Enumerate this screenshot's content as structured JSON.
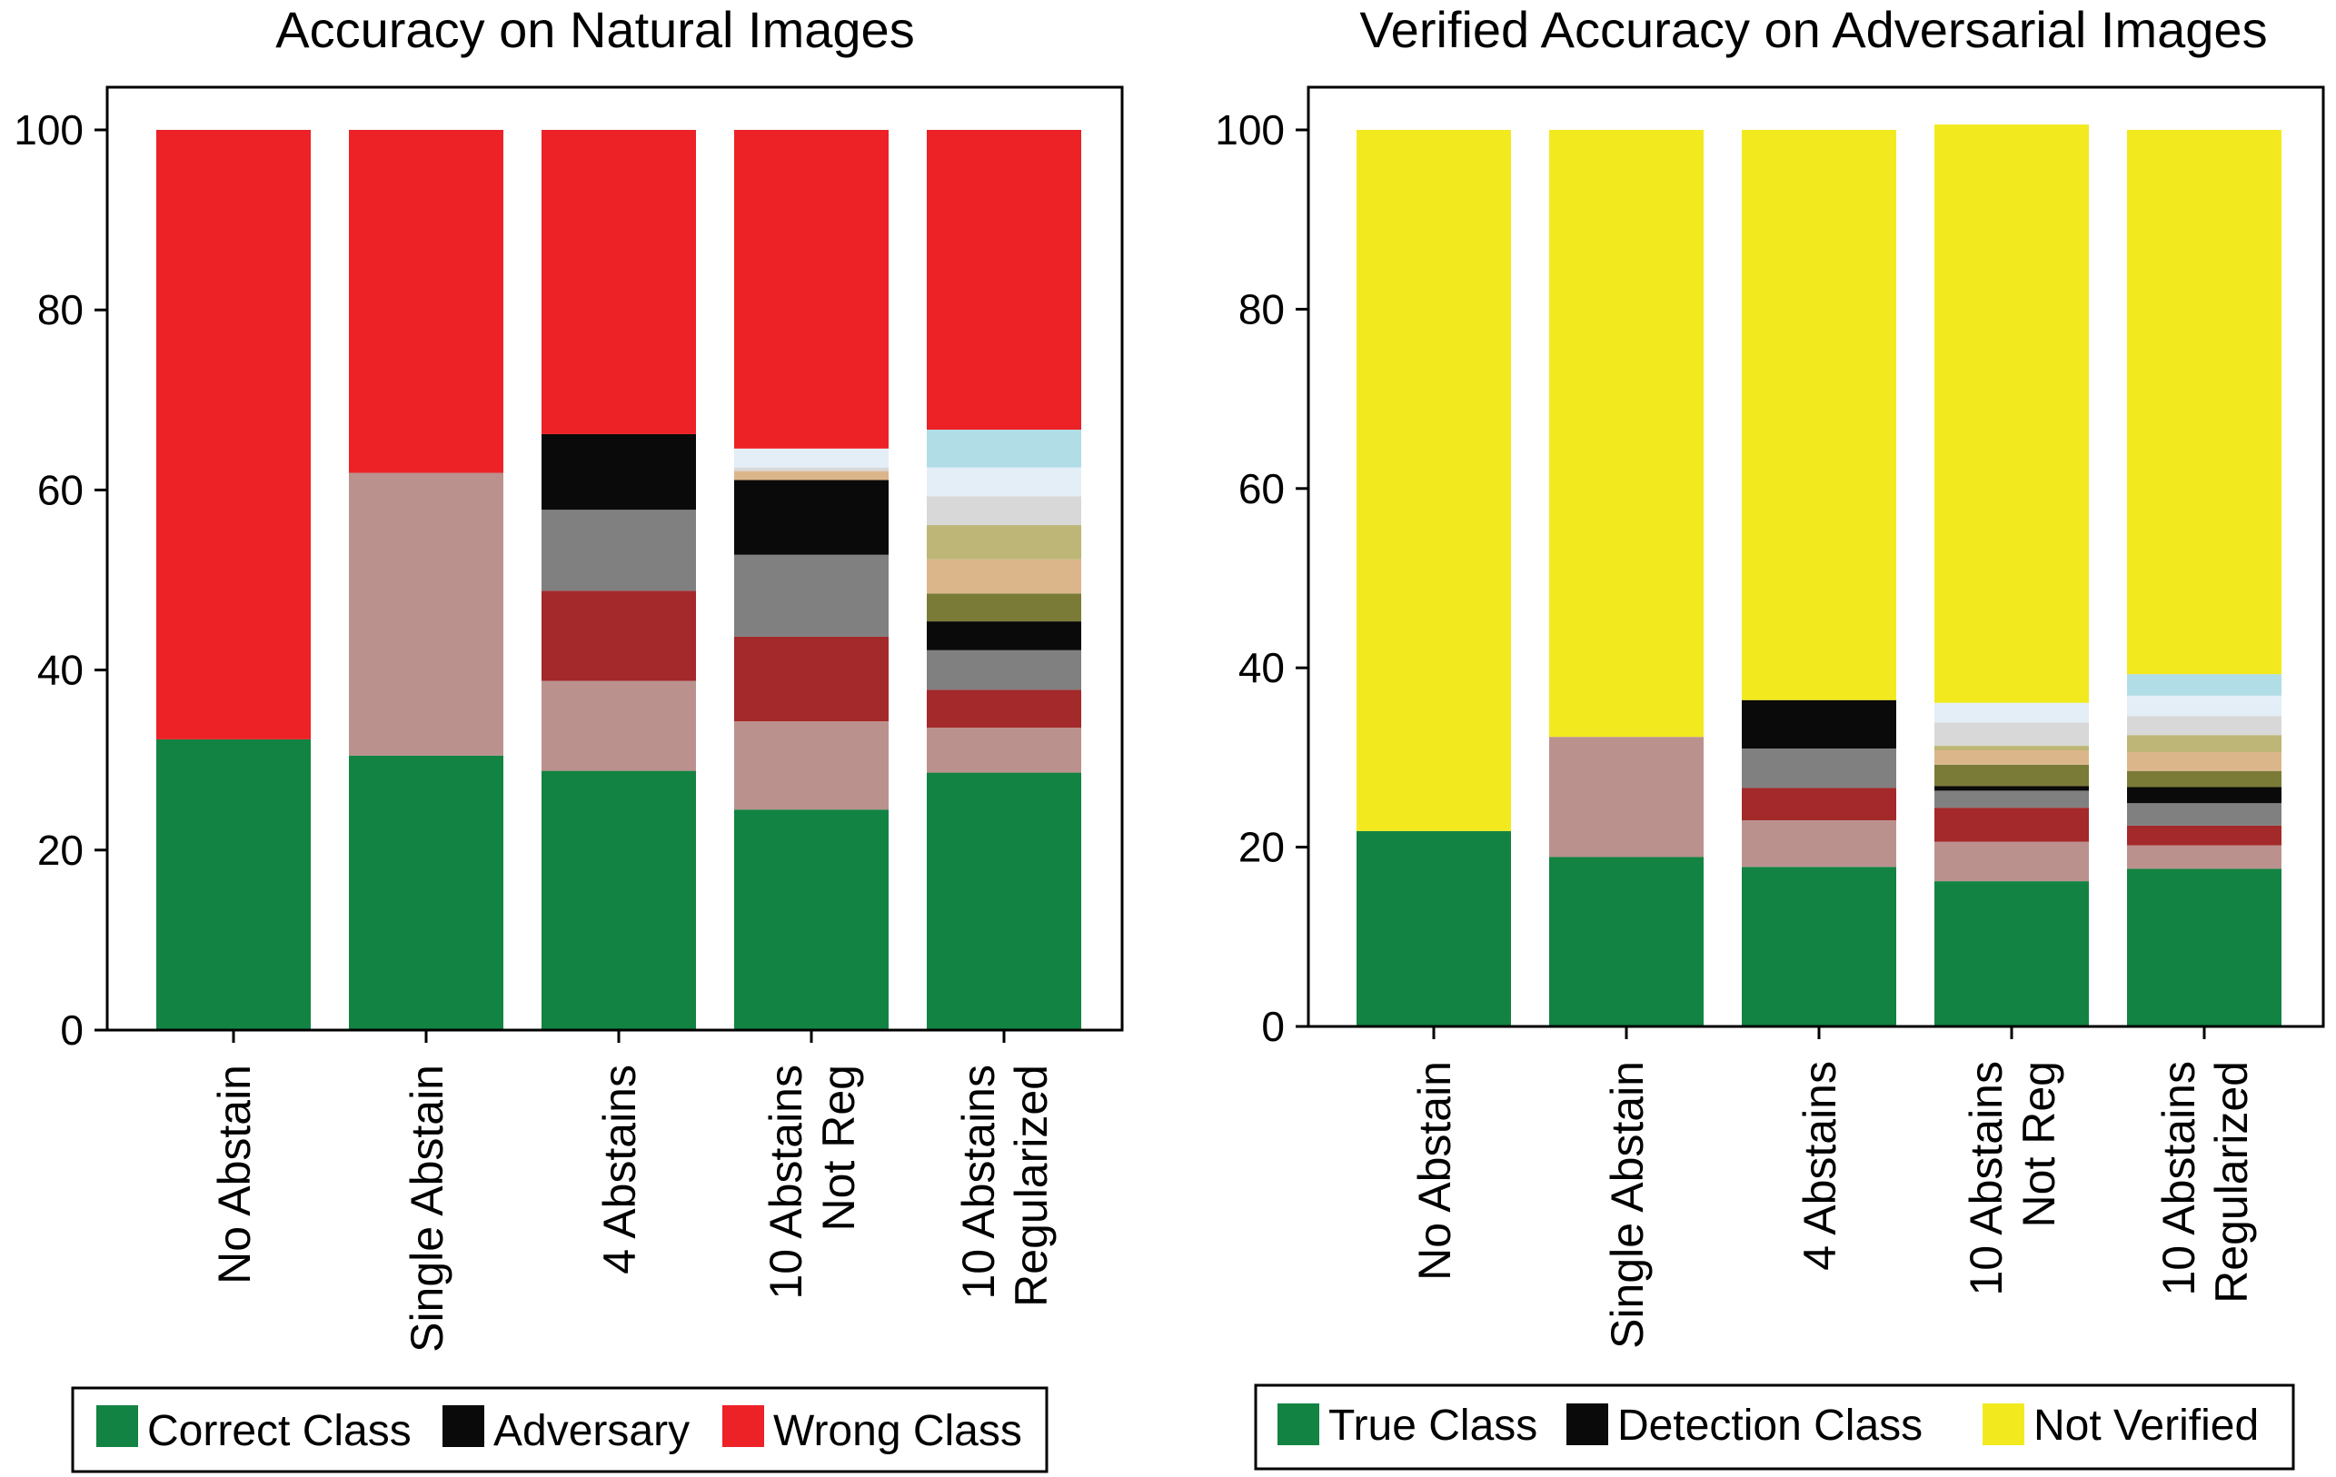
{
  "chart_data": [
    {
      "type": "bar",
      "stacked": true,
      "title": "Accuracy on Natural Images",
      "xlabel": "",
      "ylabel": "",
      "ylim": [
        0,
        105
      ],
      "yticks": [
        0,
        20,
        40,
        60,
        80,
        100
      ],
      "categories": [
        [
          "No Abstain"
        ],
        [
          "Single Abstain"
        ],
        [
          "4 Abstains"
        ],
        [
          "10 Abstains",
          "Not Reg"
        ],
        [
          "10 Abstains",
          "Regularized"
        ]
      ],
      "colors": {
        "correct": "#128342",
        "wrong": "#ec2227",
        "adversary": "#0a0a0a",
        "abstain": [
          "#bb918e",
          "#a4292a",
          "#808080",
          "#0a0a0a",
          "#7b7b38",
          "#dcb68b",
          "#bdb676",
          "#d8d8d8",
          "#e4eef6",
          "#b1dde6"
        ]
      },
      "bars": [
        {
          "correct": 32.3,
          "abstains": [],
          "wrong": 67.7
        },
        {
          "correct": 30.5,
          "abstains": [
            31.4
          ],
          "wrong": 38.1
        },
        {
          "correct": 28.8,
          "abstains": [
            10.0,
            10.0,
            9.0
          ],
          "adversary": 8.4,
          "wrong": 33.8
        },
        {
          "correct": 24.5,
          "abstains": [
            9.8,
            9.4,
            9.1,
            8.3,
            0.0,
            1.0,
            0.0,
            0.4,
            2.1
          ],
          "wrong": 35.4
        },
        {
          "correct": 28.6,
          "abstains": [
            5.0,
            4.2,
            4.4,
            3.2,
            3.1,
            3.8,
            3.8,
            3.2,
            3.2,
            4.2
          ],
          "wrong": 33.3
        }
      ],
      "legend": {
        "location": "bottom",
        "entries": [
          {
            "label": "Correct Class",
            "color": "#128342"
          },
          {
            "label": "Adversary",
            "color": "#0a0a0a"
          },
          {
            "label": "Wrong Class",
            "color": "#ec2227"
          }
        ]
      }
    },
    {
      "type": "bar",
      "stacked": true,
      "title": "Verified Accuracy on Adversarial Images",
      "xlabel": "",
      "ylabel": "",
      "ylim": [
        0,
        105
      ],
      "yticks": [
        0,
        20,
        40,
        60,
        80,
        100
      ],
      "categories": [
        [
          "No Abstain"
        ],
        [
          "Single Abstain"
        ],
        [
          "4 Abstains"
        ],
        [
          "10 Abstains",
          "Not Reg"
        ],
        [
          "10 Abstains",
          "Regularized"
        ]
      ],
      "colors": {
        "true": "#128342",
        "not_verified": "#f2ea1f",
        "detection": [
          "#bb918e",
          "#a4292a",
          "#808080",
          "#0a0a0a",
          "#7b7b38",
          "#dcb68b",
          "#bdb676",
          "#d8d8d8",
          "#e4eef6",
          "#b1dde6"
        ]
      },
      "bars": [
        {
          "true": 21.8,
          "detection": [],
          "not_verified": 78.2
        },
        {
          "true": 18.9,
          "detection": [
            13.4
          ],
          "not_verified": 67.7
        },
        {
          "true": 17.8,
          "detection": [
            5.2,
            3.6,
            4.4,
            5.4
          ],
          "not_verified": 63.6
        },
        {
          "true": 16.2,
          "detection": [
            4.4,
            3.8,
            1.9,
            0.5,
            2.4,
            1.6,
            0.5,
            2.6,
            2.2
          ],
          "not_verified": 64.5
        },
        {
          "true": 17.6,
          "detection": [
            2.6,
            2.2,
            2.5,
            1.8,
            1.8,
            2.1,
            1.9,
            2.1,
            2.3,
            2.4
          ],
          "not_verified": 60.7
        }
      ],
      "legend": {
        "location": "bottom",
        "entries": [
          {
            "label": "True Class",
            "color": "#128342"
          },
          {
            "label": "Detection Class",
            "color": "#0a0a0a"
          },
          {
            "label": "Not Verified",
            "color": "#f2ea1f"
          }
        ]
      }
    }
  ]
}
